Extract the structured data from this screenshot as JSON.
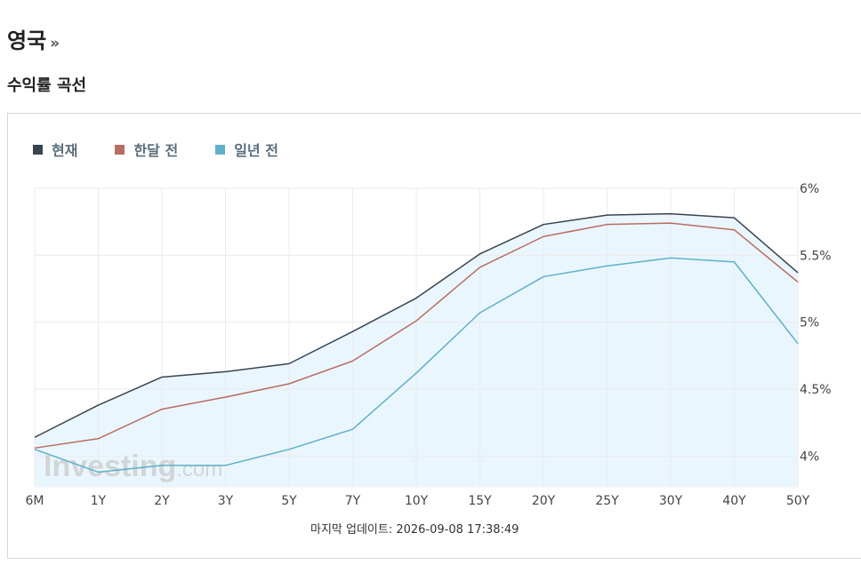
{
  "header": {
    "title": "영국",
    "chevron": "»"
  },
  "section": {
    "title": "수익률 곡선"
  },
  "legend": [
    {
      "label": "현재",
      "color": "#3a4450"
    },
    {
      "label": "한달 전",
      "color": "#b86d62"
    },
    {
      "label": "일년 전",
      "color": "#5fb1c7"
    }
  ],
  "watermark": {
    "brand": "Investing",
    "suffix": ".com"
  },
  "footer": {
    "update_text": "마지막 업데이트: 2026-09-08 17:38:49"
  },
  "chart_data": {
    "type": "line",
    "categories": [
      "6M",
      "1Y",
      "2Y",
      "3Y",
      "5Y",
      "7Y",
      "10Y",
      "15Y",
      "20Y",
      "25Y",
      "30Y",
      "40Y",
      "50Y"
    ],
    "y_ticks": [
      "6%",
      "5.5%",
      "5%",
      "4.5%",
      "4%"
    ],
    "ylim": [
      3.77,
      6.0
    ],
    "y_tick_values": [
      6.0,
      5.5,
      5.0,
      4.5,
      4.0
    ],
    "grid": true,
    "y_axis_position": "right",
    "legend_position": "top-left",
    "fill_under_series": "현재",
    "fill_color": "#eaf6fd",
    "series": [
      {
        "name": "현재",
        "color": "#3a4450",
        "values": [
          4.14,
          4.38,
          4.59,
          4.63,
          4.69,
          4.93,
          5.18,
          5.51,
          5.73,
          5.8,
          5.81,
          5.78,
          5.37
        ]
      },
      {
        "name": "한달 전",
        "color": "#b86d62",
        "values": [
          4.06,
          4.13,
          4.35,
          4.44,
          4.54,
          4.71,
          5.01,
          5.41,
          5.64,
          5.73,
          5.74,
          5.69,
          5.3
        ]
      },
      {
        "name": "일년 전",
        "color": "#5fb1c7",
        "values": [
          4.05,
          3.88,
          3.93,
          3.93,
          4.05,
          4.2,
          4.62,
          5.07,
          5.34,
          5.42,
          5.48,
          5.45,
          4.84
        ]
      }
    ]
  }
}
